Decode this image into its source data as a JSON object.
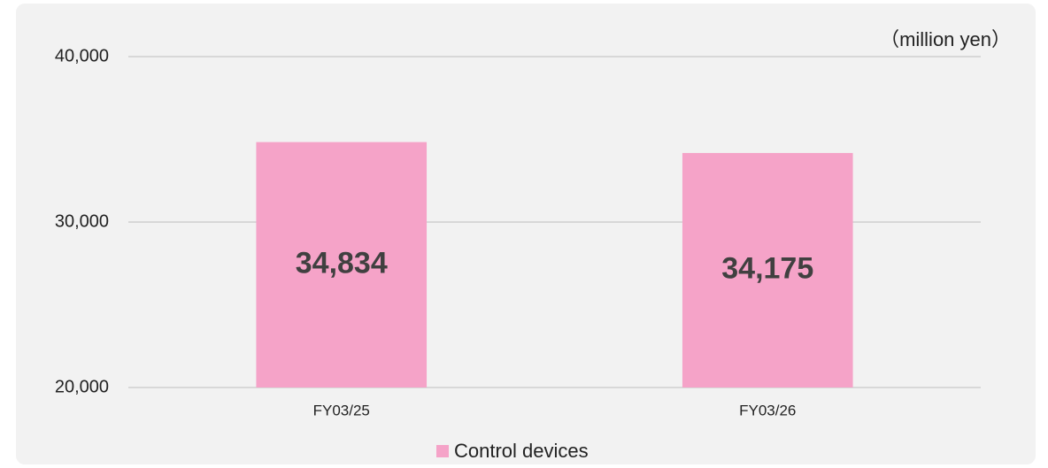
{
  "chart_data": {
    "type": "bar",
    "unit_label": "（million yen）",
    "categories": [
      "FY03/25",
      "FY03/26"
    ],
    "series": [
      {
        "name": "Control devices",
        "color": "#f5a3c8",
        "values": [
          34834,
          34175
        ],
        "value_labels": [
          "34,834",
          "34,175"
        ]
      }
    ],
    "ylim": [
      20000,
      40000
    ],
    "yticks": [
      {
        "value": 20000,
        "label": "20,000"
      },
      {
        "value": 30000,
        "label": "30,000"
      },
      {
        "value": 40000,
        "label": "40,000"
      }
    ],
    "grid": true,
    "legend": "bottom"
  }
}
